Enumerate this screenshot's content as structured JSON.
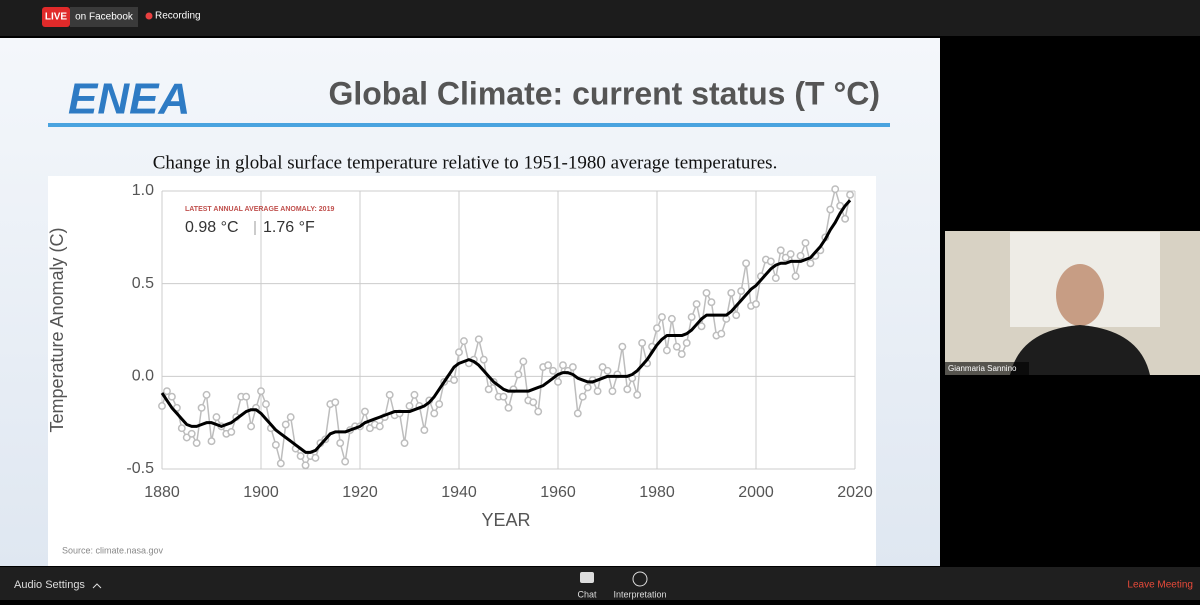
{
  "topbar": {
    "live": "LIVE",
    "platform": "on Facebook",
    "recording": "Recording"
  },
  "slide": {
    "logo": "ENEA",
    "title": "Global Climate: current status (T °C)",
    "subtitle": "Change in global surface temperature relative to 1951-1980 average temperatures."
  },
  "chart_data": {
    "type": "line",
    "annotation": {
      "heading": "LATEST ANNUAL AVERAGE ANOMALY: 2019",
      "celsius": "0.98 °C",
      "fahrenheit": "1.76 °F"
    },
    "source": "Source: climate.nasa.gov",
    "xlabel": "YEAR",
    "ylabel": "Temperature Anomaly (C)",
    "xlim": [
      1880,
      2020
    ],
    "xticks": [
      1880,
      1900,
      1920,
      1940,
      1960,
      1980,
      2000,
      2020
    ],
    "ylim": [
      -0.5,
      1.0
    ],
    "yticks": [
      -0.5,
      {
        "value": 0,
        "label": "0.0"
      },
      0.5,
      {
        "value": 1,
        "label": "1.0"
      }
    ],
    "grid": true,
    "x": [
      1880,
      1881,
      1882,
      1883,
      1884,
      1885,
      1886,
      1887,
      1888,
      1889,
      1890,
      1891,
      1892,
      1893,
      1894,
      1895,
      1896,
      1897,
      1898,
      1899,
      1900,
      1901,
      1902,
      1903,
      1904,
      1905,
      1906,
      1907,
      1908,
      1909,
      1910,
      1911,
      1912,
      1913,
      1914,
      1915,
      1916,
      1917,
      1918,
      1919,
      1920,
      1921,
      1922,
      1923,
      1924,
      1925,
      1926,
      1927,
      1928,
      1929,
      1930,
      1931,
      1932,
      1933,
      1934,
      1935,
      1936,
      1937,
      1938,
      1939,
      1940,
      1941,
      1942,
      1943,
      1944,
      1945,
      1946,
      1947,
      1948,
      1949,
      1950,
      1951,
      1952,
      1953,
      1954,
      1955,
      1956,
      1957,
      1958,
      1959,
      1960,
      1961,
      1962,
      1963,
      1964,
      1965,
      1966,
      1967,
      1968,
      1969,
      1970,
      1971,
      1972,
      1973,
      1974,
      1975,
      1976,
      1977,
      1978,
      1979,
      1980,
      1981,
      1982,
      1983,
      1984,
      1985,
      1986,
      1987,
      1988,
      1989,
      1990,
      1991,
      1992,
      1993,
      1994,
      1995,
      1996,
      1997,
      1998,
      1999,
      2000,
      2001,
      2002,
      2003,
      2004,
      2005,
      2006,
      2007,
      2008,
      2009,
      2010,
      2011,
      2012,
      2013,
      2014,
      2015,
      2016,
      2017,
      2018,
      2019
    ],
    "series": [
      {
        "color": "#bdbdbd",
        "values": [
          -0.16,
          -0.08,
          -0.11,
          -0.17,
          -0.28,
          -0.33,
          -0.31,
          -0.36,
          -0.17,
          -0.1,
          -0.35,
          -0.22,
          -0.27,
          -0.31,
          -0.3,
          -0.22,
          -0.11,
          -0.11,
          -0.27,
          -0.17,
          -0.08,
          -0.15,
          -0.28,
          -0.37,
          -0.47,
          -0.26,
          -0.22,
          -0.39,
          -0.43,
          -0.48,
          -0.43,
          -0.44,
          -0.36,
          -0.34,
          -0.15,
          -0.14,
          -0.36,
          -0.46,
          -0.29,
          -0.27,
          -0.27,
          -0.19,
          -0.28,
          -0.26,
          -0.27,
          -0.22,
          -0.1,
          -0.21,
          -0.2,
          -0.36,
          -0.16,
          -0.1,
          -0.16,
          -0.29,
          -0.13,
          -0.2,
          -0.15,
          -0.03,
          -0.01,
          -0.02,
          0.13,
          0.19,
          0.07,
          0.09,
          0.2,
          0.09,
          -0.07,
          -0.03,
          -0.11,
          -0.11,
          -0.17,
          -0.07,
          0.01,
          0.08,
          -0.13,
          -0.14,
          -0.19,
          0.05,
          0.06,
          0.03,
          -0.03,
          0.06,
          0.03,
          0.05,
          -0.2,
          -0.11,
          -0.06,
          -0.02,
          -0.08,
          0.05,
          0.03,
          -0.08,
          0.01,
          0.16,
          -0.07,
          -0.01,
          -0.1,
          0.18,
          0.07,
          0.16,
          0.26,
          0.32,
          0.14,
          0.31,
          0.16,
          0.12,
          0.18,
          0.32,
          0.39,
          0.27,
          0.45,
          0.4,
          0.22,
          0.23,
          0.31,
          0.45,
          0.33,
          0.46,
          0.61,
          0.38,
          0.39,
          0.54,
          0.63,
          0.62,
          0.53,
          0.68,
          0.64,
          0.66,
          0.54,
          0.65,
          0.72,
          0.61,
          0.65,
          0.68,
          0.75,
          0.9,
          1.01,
          0.92,
          0.85,
          0.98
        ]
      },
      {
        "color": "#000000",
        "values": [
          -0.09,
          -0.13,
          -0.17,
          -0.2,
          -0.23,
          -0.26,
          -0.27,
          -0.27,
          -0.26,
          -0.25,
          -0.25,
          -0.26,
          -0.27,
          -0.26,
          -0.25,
          -0.23,
          -0.21,
          -0.19,
          -0.18,
          -0.18,
          -0.2,
          -0.23,
          -0.26,
          -0.29,
          -0.31,
          -0.33,
          -0.35,
          -0.37,
          -0.39,
          -0.41,
          -0.41,
          -0.4,
          -0.37,
          -0.34,
          -0.31,
          -0.3,
          -0.3,
          -0.3,
          -0.29,
          -0.28,
          -0.27,
          -0.25,
          -0.24,
          -0.23,
          -0.22,
          -0.21,
          -0.2,
          -0.19,
          -0.19,
          -0.19,
          -0.19,
          -0.18,
          -0.17,
          -0.16,
          -0.14,
          -0.11,
          -0.07,
          -0.03,
          0.01,
          0.05,
          0.07,
          0.08,
          0.09,
          0.08,
          0.06,
          0.03,
          0.0,
          -0.03,
          -0.05,
          -0.07,
          -0.08,
          -0.08,
          -0.08,
          -0.08,
          -0.08,
          -0.07,
          -0.06,
          -0.05,
          -0.03,
          -0.01,
          0.01,
          0.02,
          0.02,
          0.01,
          -0.01,
          -0.02,
          -0.03,
          -0.03,
          -0.02,
          -0.01,
          0.0,
          0.0,
          0.0,
          0.0,
          0.0,
          0.01,
          0.03,
          0.06,
          0.09,
          0.13,
          0.17,
          0.2,
          0.22,
          0.22,
          0.22,
          0.22,
          0.23,
          0.25,
          0.28,
          0.31,
          0.33,
          0.33,
          0.33,
          0.33,
          0.33,
          0.35,
          0.38,
          0.41,
          0.44,
          0.47,
          0.49,
          0.52,
          0.55,
          0.58,
          0.6,
          0.61,
          0.61,
          0.62,
          0.62,
          0.62,
          0.63,
          0.64,
          0.67,
          0.7,
          0.74,
          0.79,
          0.83,
          0.88,
          0.92,
          0.95
        ]
      }
    ]
  },
  "video": {
    "participant": "Gianmaria Sannino"
  },
  "bottombar": {
    "audio": "Audio Settings",
    "chat": "Chat",
    "interpretation": "Interpretation",
    "leave": "Leave Meeting"
  }
}
